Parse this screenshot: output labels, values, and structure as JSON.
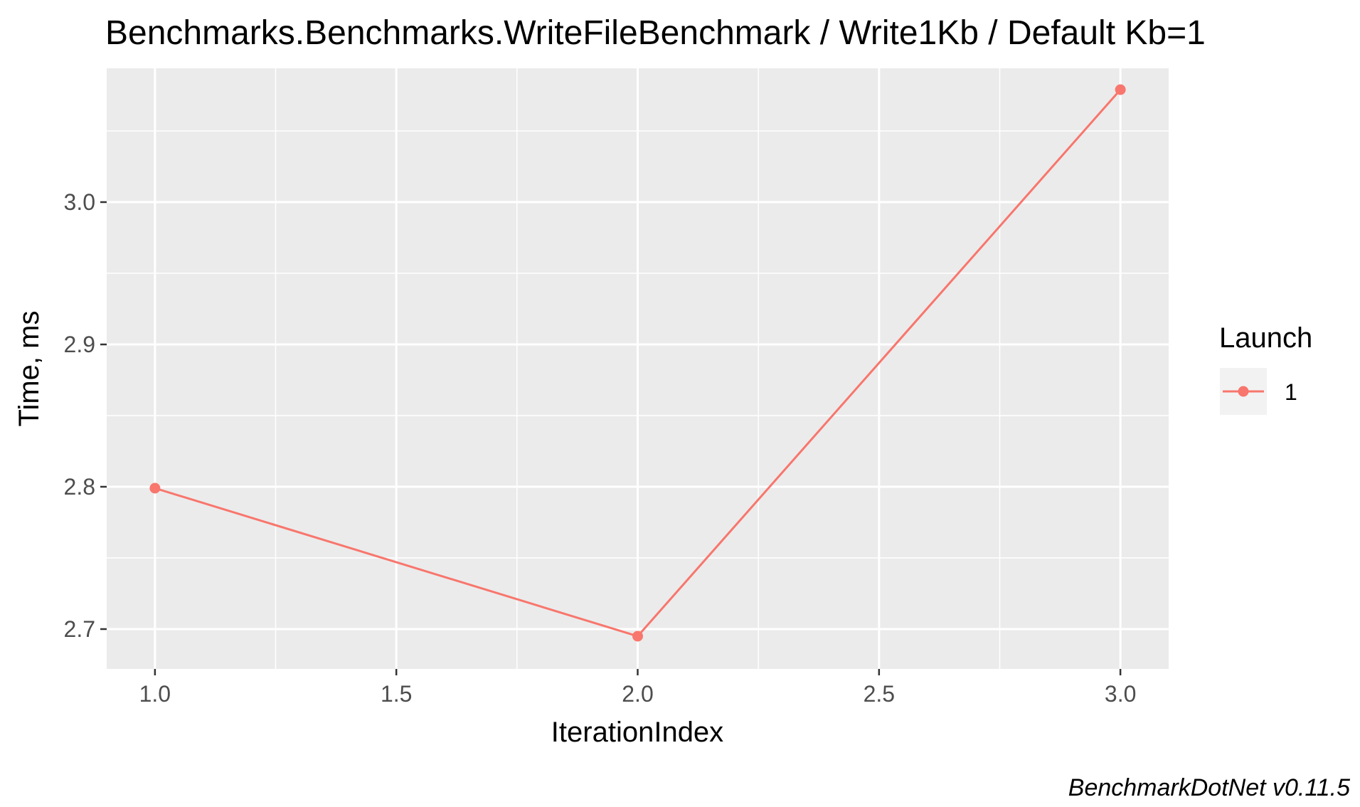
{
  "chart_data": {
    "type": "line",
    "title": "Benchmarks.Benchmarks.WriteFileBenchmark / Write1Kb / Default Kb=1",
    "xlabel": "IterationIndex",
    "ylabel": "Time, ms",
    "caption": "BenchmarkDotNet v0.11.5",
    "xlim": [
      0.9,
      3.1
    ],
    "ylim": [
      2.672,
      3.094
    ],
    "x_ticks": [
      1.0,
      1.5,
      2.0,
      2.5,
      3.0
    ],
    "x_tick_labels": [
      "1.0",
      "1.5",
      "2.0",
      "2.5",
      "3.0"
    ],
    "y_ticks": [
      2.7,
      2.8,
      2.9,
      3.0
    ],
    "y_tick_labels": [
      "2.7",
      "2.8",
      "2.9",
      "3.0"
    ],
    "grid": true,
    "legend": {
      "title": "Launch",
      "position": "right",
      "entries": [
        "1"
      ]
    },
    "series": [
      {
        "name": "1",
        "color": "#f8766d",
        "x": [
          1,
          2,
          3
        ],
        "y": [
          2.799,
          2.695,
          3.079
        ]
      }
    ]
  },
  "colors": {
    "panel_background": "#ebebeb",
    "grid_major": "#ffffff",
    "legend_key_background": "#f2f2f2"
  }
}
